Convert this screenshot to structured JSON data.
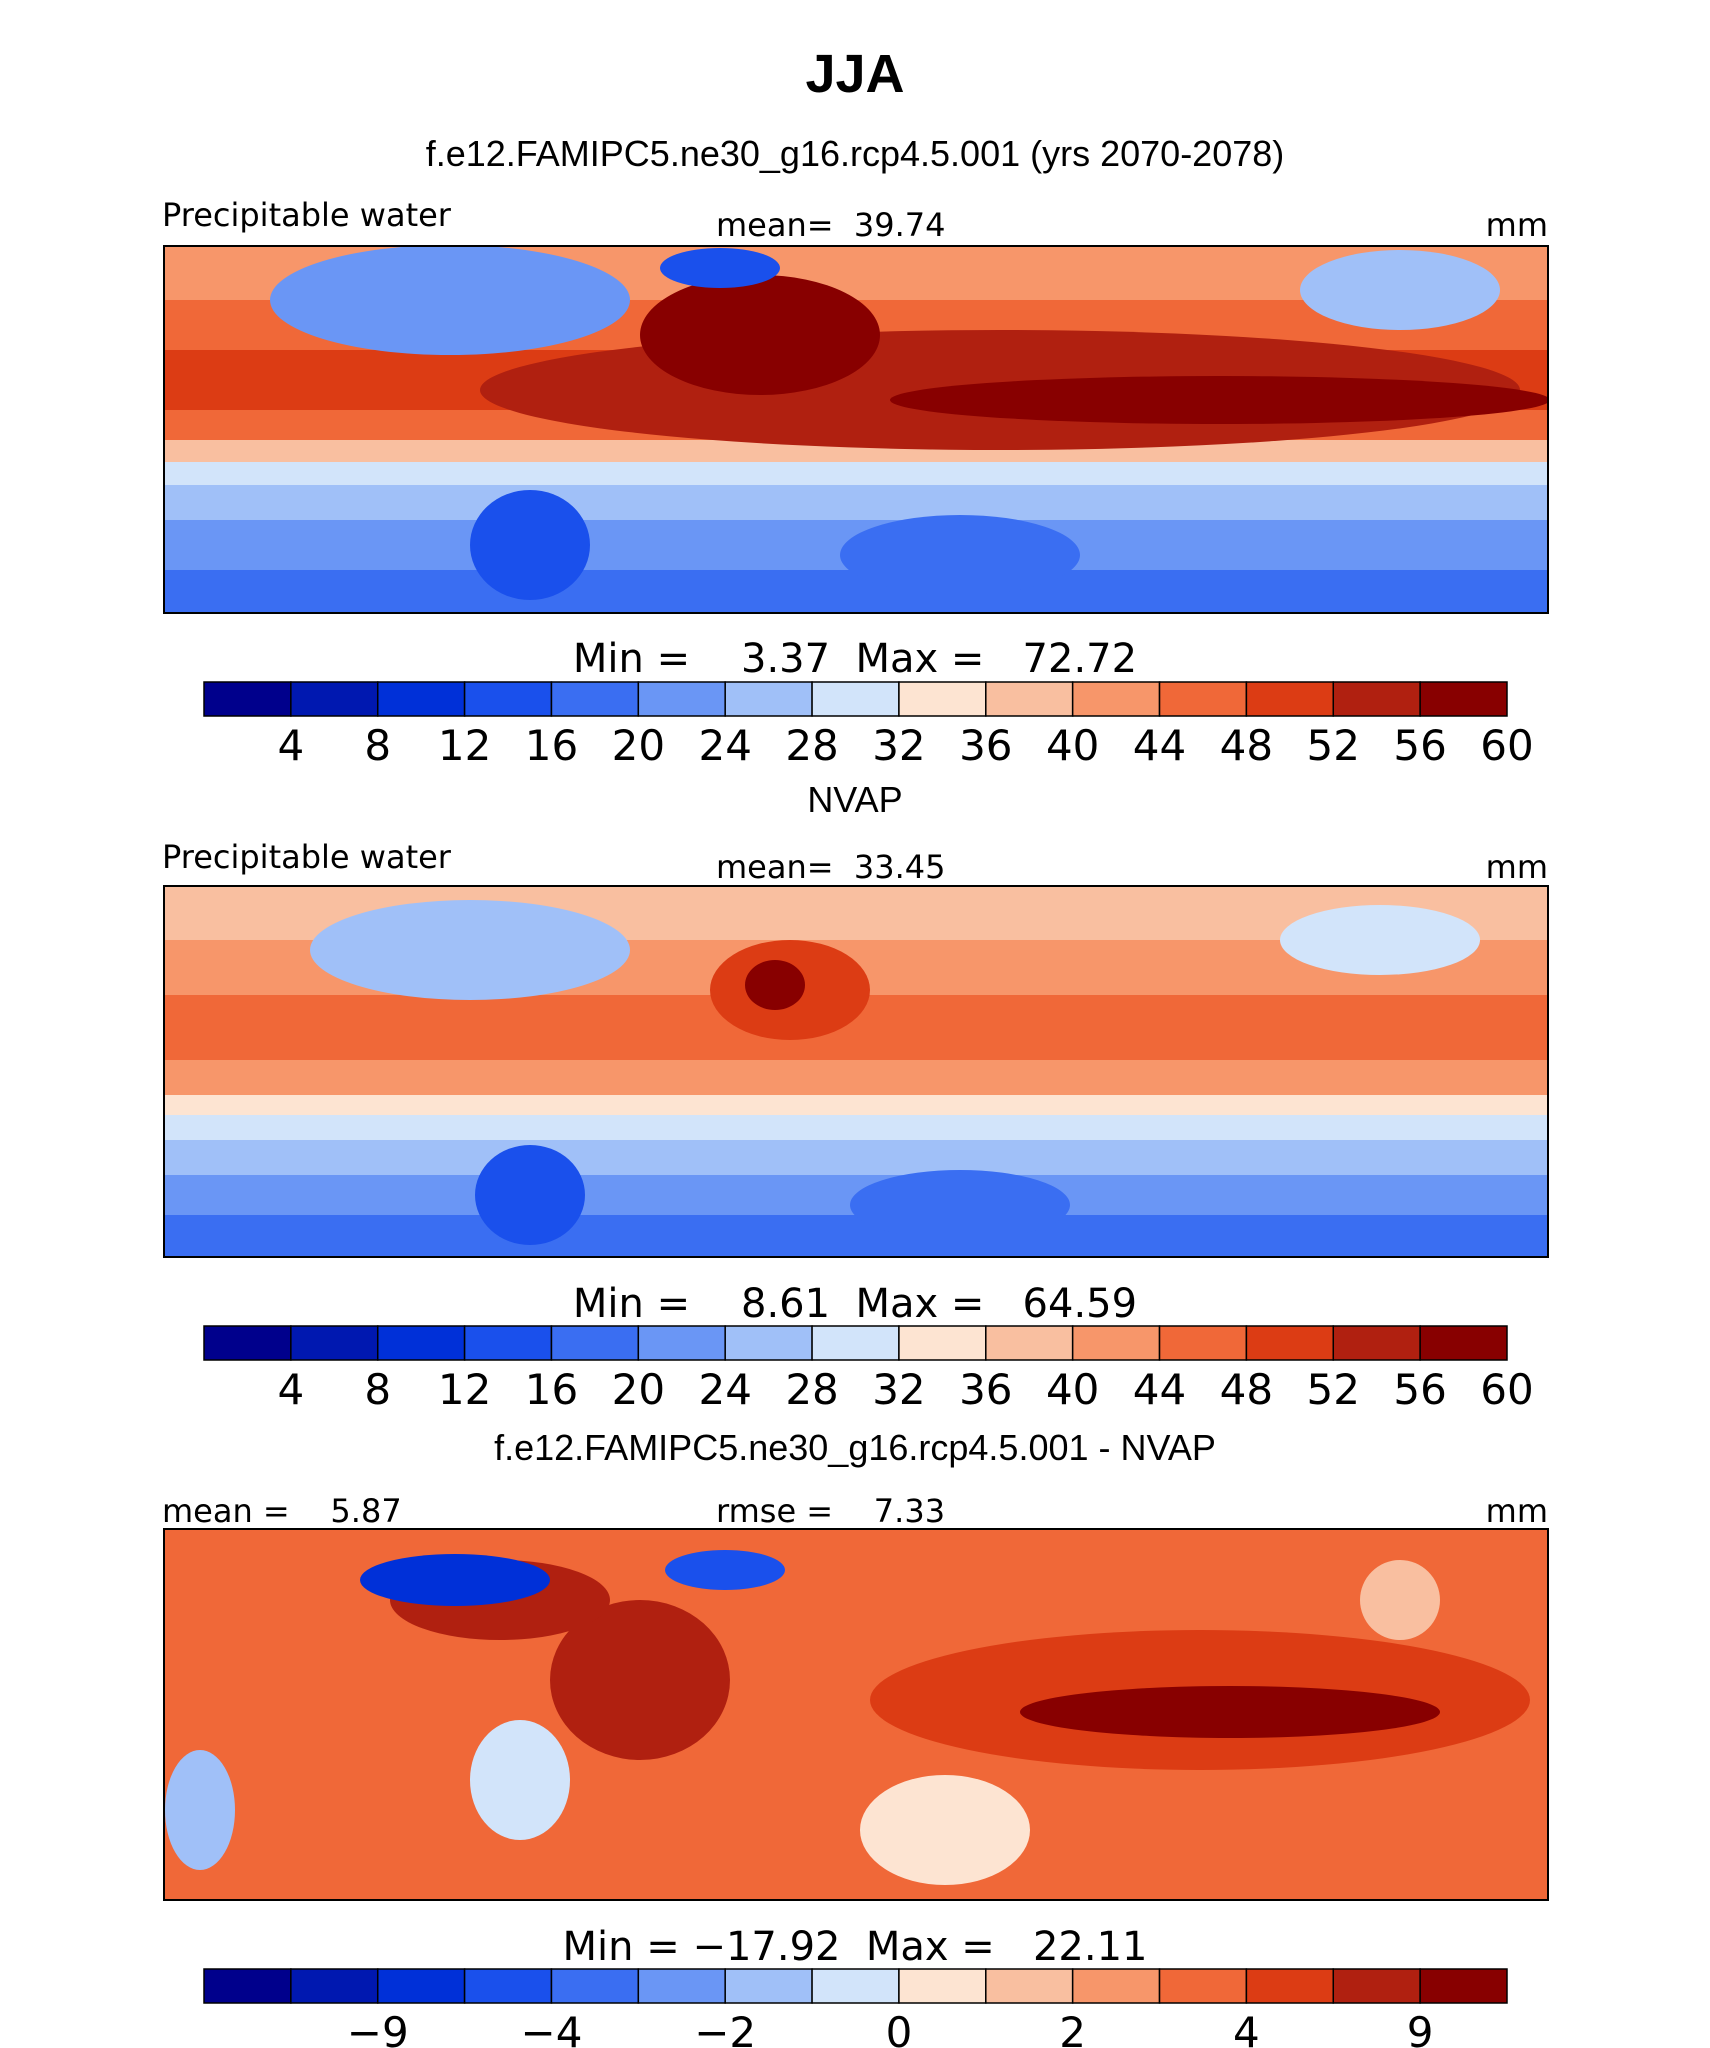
{
  "title": "JJA",
  "panels": [
    {
      "title": "f.e12.FAMIPC5.ne30_g16.rcp4.5.001 (yrs 2070-2078)",
      "left_label": "Precipitable water",
      "center_label": "mean=  39.74",
      "right_label": "mm",
      "minmax": "Min =    3.37  Max =   72.72",
      "colorbar_ticks": [
        "4",
        "8",
        "12",
        "16",
        "20",
        "24",
        "28",
        "32",
        "36",
        "40",
        "44",
        "48",
        "52",
        "56",
        "60"
      ],
      "tick_bins": [
        1,
        2,
        3,
        4,
        5,
        6,
        7,
        8,
        9,
        10,
        11,
        12,
        13,
        14,
        15
      ]
    },
    {
      "title": "NVAP",
      "left_label": "Precipitable water",
      "center_label": "mean=  33.45",
      "right_label": "mm",
      "minmax": "Min =    8.61  Max =   64.59",
      "colorbar_ticks": [
        "4",
        "8",
        "12",
        "16",
        "20",
        "24",
        "28",
        "32",
        "36",
        "40",
        "44",
        "48",
        "52",
        "56",
        "60"
      ],
      "tick_bins": [
        1,
        2,
        3,
        4,
        5,
        6,
        7,
        8,
        9,
        10,
        11,
        12,
        13,
        14,
        15
      ]
    },
    {
      "title": "f.e12.FAMIPC5.ne30_g16.rcp4.5.001 - NVAP",
      "left_label": "mean =    5.87",
      "center_label": "rmse =    7.33",
      "right_label": "mm",
      "minmax": "Min = −17.92  Max =   22.11",
      "colorbar_ticks": [
        "−9",
        "−4",
        "−2",
        "0",
        "2",
        "4",
        "9"
      ],
      "tick_bins": [
        2,
        4,
        6,
        8,
        10,
        12,
        14
      ]
    }
  ],
  "colors": {
    "palette": [
      "#00008c",
      "#0018b0",
      "#0030d8",
      "#1a50ec",
      "#3a6ef2",
      "#6a96f5",
      "#a0c0f8",
      "#d2e4fa",
      "#fde4d2",
      "#f9bfa0",
      "#f7966a",
      "#f06838",
      "#dc3c14",
      "#b02010",
      "#880000"
    ]
  },
  "chart_data": [
    {
      "type": "heatmap",
      "title": "f.e12.FAMIPC5.ne30_g16.rcp4.5.001 (yrs 2070-2078)",
      "variable": "Precipitable water",
      "units": "mm",
      "mean": 39.74,
      "min": 3.37,
      "max": 72.72,
      "contour_levels": [
        4,
        8,
        12,
        16,
        20,
        24,
        28,
        32,
        36,
        40,
        44,
        48,
        52,
        56,
        60
      ]
    },
    {
      "type": "heatmap",
      "title": "NVAP",
      "variable": "Precipitable water",
      "units": "mm",
      "mean": 33.45,
      "min": 8.61,
      "max": 64.59,
      "contour_levels": [
        4,
        8,
        12,
        16,
        20,
        24,
        28,
        32,
        36,
        40,
        44,
        48,
        52,
        56,
        60
      ]
    },
    {
      "type": "heatmap",
      "title": "f.e12.FAMIPC5.ne30_g16.rcp4.5.001 - NVAP",
      "units": "mm",
      "mean": 5.87,
      "rmse": 7.33,
      "min": -17.92,
      "max": 22.11,
      "contour_levels": [
        -9,
        -4,
        -2,
        0,
        2,
        4,
        9
      ]
    }
  ]
}
